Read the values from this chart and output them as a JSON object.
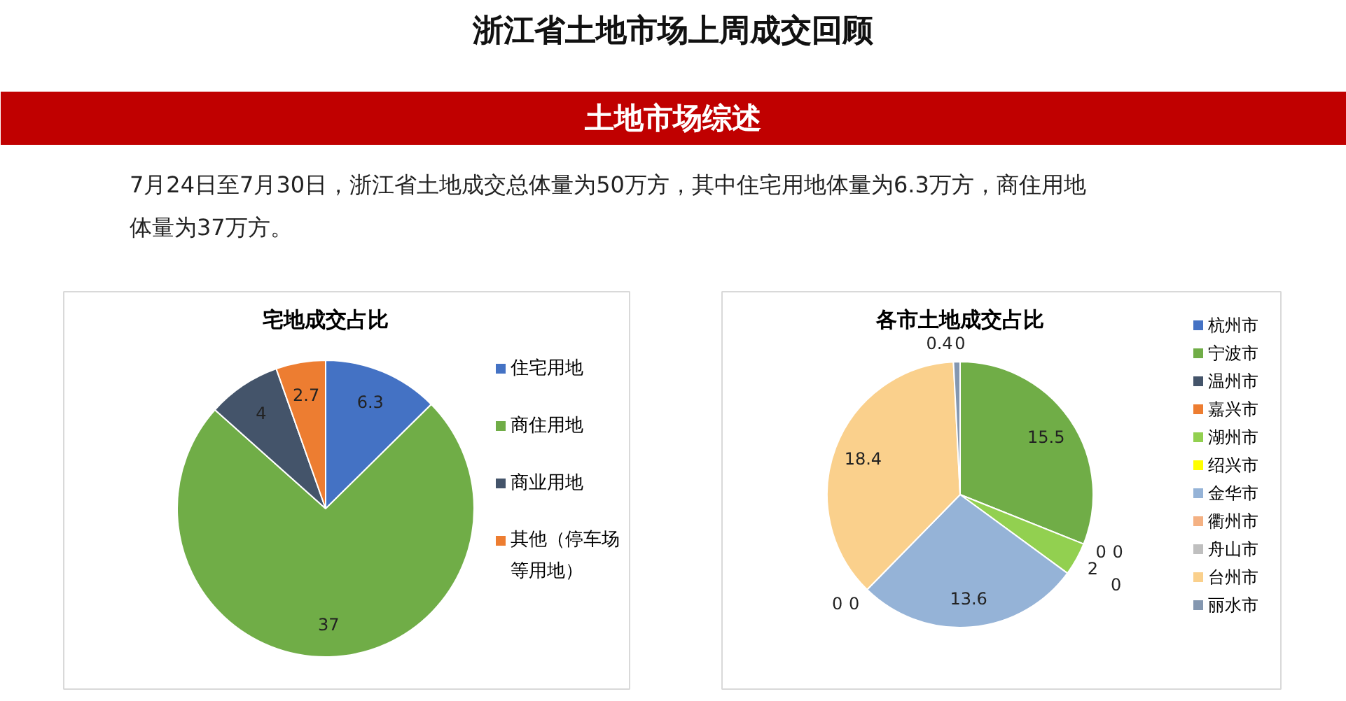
{
  "chart_data": [
    {
      "type": "other",
      "title": "浙江省土地市场上周成交回顾",
      "subtitle": "土地市场综述",
      "annotations": [
        "7月24日至7月30日，浙江省土地成交总体量为50万方，其中住宅用地体量为6.3万方，商住用地体量为37万方。"
      ]
    },
    {
      "type": "pie",
      "title": "宅地成交占比",
      "categories": [
        "住宅用地",
        "商住用地",
        "商业用地",
        "其他（停车场等用地）"
      ],
      "values": [
        6.3,
        37,
        4,
        2.7
      ],
      "colors": [
        "#4472c4",
        "#70ad47",
        "#44546a",
        "#ed7d31"
      ],
      "data_labels": true,
      "legend": "right"
    },
    {
      "type": "pie",
      "title": "各市土地成交占比",
      "categories": [
        "杭州市",
        "宁波市",
        "温州市",
        "嘉兴市",
        "湖州市",
        "绍兴市",
        "金华市",
        "衢州市",
        "舟山市",
        "台州市",
        "丽水市"
      ],
      "values": [
        0,
        15.5,
        0,
        0,
        2,
        0,
        13.6,
        0,
        0,
        18.4,
        0.4
      ],
      "colors": [
        "#4472c4",
        "#70ad47",
        "#44546a",
        "#ed7d31",
        "#92d050",
        "#ffff00",
        "#95b3d7",
        "#f4b183",
        "#bfbfbf",
        "#fad08c",
        "#8497b0"
      ],
      "value_labels": [
        "0",
        "15.5",
        "0",
        "0",
        "2",
        "0",
        "13.6",
        "0",
        "0",
        "18.4",
        "0.4"
      ],
      "legend": "right"
    }
  ]
}
